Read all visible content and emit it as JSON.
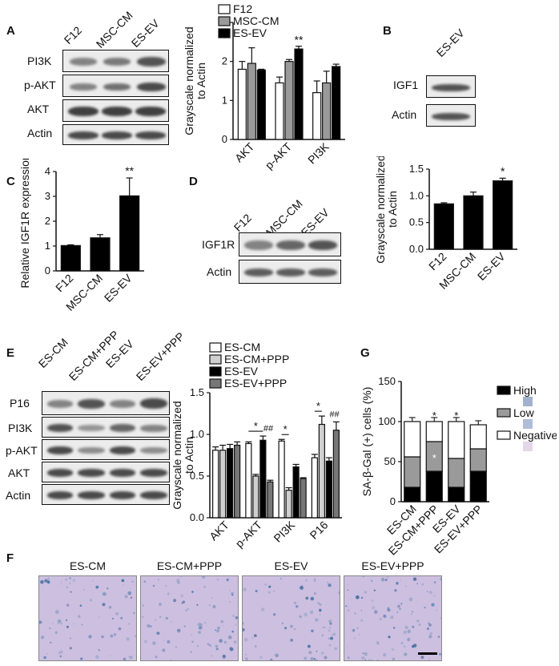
{
  "panels": {
    "A": {
      "letter": "A",
      "lanes": [
        "F12",
        "MSC-CM",
        "ES-EV"
      ],
      "rows": [
        "PI3K",
        "p-AKT",
        "AKT",
        "Actin"
      ],
      "chart_data": {
        "type": "bar",
        "categories": [
          "AKT",
          "p-AKT",
          "PI3K"
        ],
        "series": [
          {
            "name": "F12",
            "values": [
              1.8,
              1.45,
              1.2
            ],
            "errors": [
              0.2,
              0.15,
              0.3
            ]
          },
          {
            "name": "MSC-CM",
            "values": [
              1.95,
              2.0,
              1.45
            ],
            "errors": [
              0.4,
              0.05,
              0.3
            ]
          },
          {
            "name": "ES-EV",
            "values": [
              1.78,
              2.32,
              1.87
            ],
            "errors": [
              0.02,
              0.07,
              0.06
            ]
          }
        ],
        "ylabel": "Grayscale normalized to Actin",
        "ylim": [
          0,
          3
        ],
        "yticks": [
          0,
          1,
          2,
          3
        ],
        "annotations": [
          "**"
        ],
        "series_colors": [
          "#ffffff",
          "#9a9a9a",
          "#000000"
        ]
      }
    },
    "B": {
      "letter": "B",
      "lanes": [
        "ES-EV"
      ],
      "rows": [
        "IGF1",
        "Actin"
      ],
      "chart_data": {
        "type": "bar",
        "categories": [
          "F12",
          "MSC-CM",
          "ES-EV"
        ],
        "values": [
          0.85,
          1.0,
          1.28
        ],
        "errors": [
          0.02,
          0.07,
          0.05
        ],
        "ylabel": "Grayscale normalized to Actin",
        "ylim": [
          0,
          1.5
        ],
        "yticks": [
          0.0,
          0.5,
          1.0,
          1.5
        ],
        "annotations": [
          "*"
        ]
      }
    },
    "C": {
      "letter": "C",
      "chart_data": {
        "type": "bar",
        "categories": [
          "F12",
          "MSC-CM",
          "ES-EV"
        ],
        "values": [
          1.02,
          1.33,
          3.02
        ],
        "errors": [
          0.03,
          0.13,
          0.72
        ],
        "ylabel": "Relative IGF1R expression",
        "ylim": [
          0,
          4
        ],
        "yticks": [
          0,
          1,
          2,
          3,
          4
        ],
        "annotations": [
          "**"
        ]
      }
    },
    "D": {
      "letter": "D",
      "lanes": [
        "F12",
        "MSC-CM",
        "ES-EV"
      ],
      "rows": [
        "IGF1R",
        "Actin"
      ]
    },
    "E": {
      "letter": "E",
      "lanes": [
        "ES-CM",
        "ES-CM+PPP",
        "ES-EV",
        "ES-EV+PPP"
      ],
      "rows": [
        "P16",
        "PI3K",
        "p-AKT",
        "AKT",
        "Actin"
      ],
      "chart_data": {
        "type": "bar",
        "categories": [
          "AKT",
          "p-AKT",
          "PI3K",
          "P16"
        ],
        "series": [
          {
            "name": "ES-CM",
            "values": [
              0.81,
              0.89,
              0.92,
              0.72
            ],
            "errors": [
              0.04,
              0.02,
              0.02,
              0.04
            ]
          },
          {
            "name": "ES-CM+PPP",
            "values": [
              0.81,
              0.5,
              0.33,
              1.12
            ],
            "errors": [
              0.06,
              0.02,
              0.03,
              0.1
            ]
          },
          {
            "name": "ES-EV",
            "values": [
              0.83,
              0.93,
              0.61,
              0.68
            ],
            "errors": [
              0.05,
              0.05,
              0.03,
              0.04
            ]
          },
          {
            "name": "ES-EV+PPP",
            "values": [
              0.87,
              0.43,
              0.47,
              1.05
            ],
            "errors": [
              0.04,
              0.02,
              0.01,
              0.1
            ]
          }
        ],
        "ylabel": "Grayscale normalized to Actin",
        "ylim": [
          0,
          1.5
        ],
        "yticks": [
          0.0,
          0.5,
          1.0,
          1.5
        ],
        "annotations": [
          "*",
          "##",
          "*",
          "*",
          "##"
        ],
        "series_colors": [
          "#ffffff",
          "#cfcfcf",
          "#000000",
          "#777777"
        ]
      }
    },
    "F": {
      "letter": "F",
      "images": [
        "ES-CM",
        "ES-CM+PPP",
        "ES-EV",
        "ES-EV+PPP"
      ]
    },
    "G": {
      "letter": "G",
      "chart_data": {
        "type": "bar",
        "stacked": true,
        "categories": [
          "ES-CM",
          "ES-CM+PPP",
          "ES-EV",
          "ES-EV+PPP"
        ],
        "series": [
          {
            "name": "High",
            "values": [
              18,
              38,
              18,
              38
            ]
          },
          {
            "name": "Low",
            "values": [
              38,
              37,
              36,
              28
            ]
          },
          {
            "name": "Negative",
            "values": [
              44,
              25,
              46,
              30
            ]
          }
        ],
        "ylabel": "SA-β-Gal (+) cells (%)",
        "ylim": [
          0,
          150
        ],
        "yticks": [
          0,
          50,
          100,
          150
        ],
        "annotations": [
          "*",
          "*",
          "*",
          "**"
        ],
        "series_colors": [
          "#000000",
          "#9a9a9a",
          "#ffffff"
        ]
      }
    }
  }
}
